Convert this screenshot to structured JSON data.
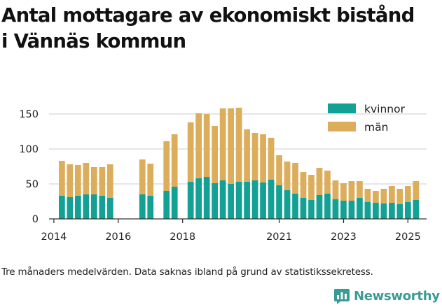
{
  "title_line1": "Antal mottagare av ekonomiskt bistånd",
  "title_line2": "i Vännäs kommun",
  "footnote": "Tre månaders medelvärden. Data saknas ibland på grund av statistikssekretess.",
  "brand": {
    "name": "Newsworthy",
    "icon": "newsworthy-logo-icon",
    "color": "#3a9b94"
  },
  "colors": {
    "kvinnor": "#13a095",
    "man": "#dcad5a",
    "grid": "#d6d6d6",
    "axis": "#333333"
  },
  "chart_data": {
    "type": "bar",
    "stacked": true,
    "title": "Antal mottagare av ekonomiskt bistånd i Vännäs kommun",
    "xlabel": "",
    "ylabel": "",
    "ylim": [
      0,
      165
    ],
    "xlim": [
      2013.85,
      2025.58
    ],
    "yticks": [
      0,
      50,
      100,
      150
    ],
    "xticks": [
      {
        "value": 2014.0,
        "label": "2014"
      },
      {
        "value": 2016.0,
        "label": "2016"
      },
      {
        "value": 2018.0,
        "label": "2018"
      },
      {
        "value": 2021.0,
        "label": "2021"
      },
      {
        "value": 2023.0,
        "label": "2023"
      },
      {
        "value": 2025.0,
        "label": "2025"
      }
    ],
    "grid": true,
    "legend_position": "top-right",
    "series": [
      {
        "name": "kvinnor",
        "color": "#13a095"
      },
      {
        "name": "män",
        "color": "#dcad5a"
      }
    ],
    "bar_width": 0.19,
    "x": [
      2014.25,
      2014.5,
      2014.75,
      2015.0,
      2015.25,
      2015.5,
      2015.75,
      2016.75,
      2017.0,
      2017.5,
      2017.75,
      2018.25,
      2018.5,
      2018.75,
      2019.0,
      2019.25,
      2019.5,
      2019.75,
      2020.0,
      2020.25,
      2020.5,
      2020.75,
      2021.0,
      2021.25,
      2021.5,
      2021.75,
      2022.0,
      2022.25,
      2022.5,
      2022.75,
      2023.0,
      2023.25,
      2023.5,
      2023.75,
      2024.0,
      2024.25,
      2024.5,
      2024.75,
      2025.0,
      2025.25
    ],
    "kvinnor": [
      33,
      31,
      33,
      35,
      35,
      33,
      30,
      35,
      33,
      40,
      46,
      53,
      58,
      60,
      51,
      55,
      50,
      53,
      53,
      55,
      52,
      56,
      48,
      41,
      36,
      30,
      27,
      34,
      36,
      28,
      26,
      26,
      30,
      24,
      23,
      22,
      23,
      21,
      24,
      27
    ],
    "man": [
      50,
      47,
      44,
      45,
      39,
      41,
      48,
      50,
      46,
      71,
      75,
      85,
      93,
      90,
      82,
      103,
      108,
      106,
      75,
      68,
      69,
      60,
      43,
      41,
      44,
      37,
      36,
      39,
      33,
      27,
      25,
      28,
      24,
      19,
      17,
      21,
      24,
      22,
      23,
      27
    ]
  }
}
